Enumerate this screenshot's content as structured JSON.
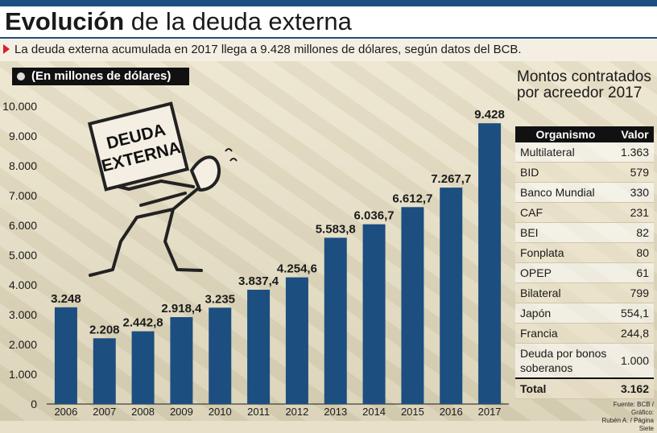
{
  "header": {
    "title_bold": "Evolución",
    "title_rest": "de la deuda externa"
  },
  "subtitle": "La deuda externa acumulada en 2017 llega a 9.428 millones de dólares, según datos del BCB.",
  "unit_label": "(En millones de dólares)",
  "illustration": {
    "sign_line1": "DEUDA",
    "sign_line2": "EXTERNA"
  },
  "colors": {
    "bar": "#1c4e80",
    "accent_red": "#d2232a",
    "table_header": "#111111"
  },
  "chart_data": {
    "type": "bar",
    "categories": [
      "2006",
      "2007",
      "2008",
      "2009",
      "2010",
      "2011",
      "2012",
      "2013",
      "2014",
      "2015",
      "2016",
      "2017"
    ],
    "values": [
      3248,
      2208,
      2442.8,
      2918.4,
      3235,
      3837.4,
      4254.6,
      5583.8,
      6036.7,
      6612.7,
      7267.7,
      9428
    ],
    "value_labels": [
      "3.248",
      "2.208",
      "2.442,8",
      "2.918,4",
      "3.235",
      "3.837,4",
      "4.254,6",
      "5.583,8",
      "6.036,7",
      "6.612,7",
      "7.267,7",
      "9.428"
    ],
    "yticks": [
      "0",
      "1.000",
      "2.000",
      "3.000",
      "4.000",
      "5.000",
      "6.000",
      "7.000",
      "8.000",
      "9.000",
      "10.000"
    ],
    "ylim": [
      0,
      10000
    ],
    "grid": false
  },
  "side_panel": {
    "title": "Montos contratados por acreedor 2017",
    "headers": [
      "Organismo",
      "Valor"
    ],
    "rows": [
      {
        "name": "Multilateral",
        "value": "1.363"
      },
      {
        "name": "BID",
        "value": "579"
      },
      {
        "name": "Banco Mundial",
        "value": "330"
      },
      {
        "name": "CAF",
        "value": "231"
      },
      {
        "name": "BEI",
        "value": "82"
      },
      {
        "name": "Fonplata",
        "value": "80"
      },
      {
        "name": "OPEP",
        "value": "61"
      },
      {
        "name": "Bilateral",
        "value": "799"
      },
      {
        "name": "Japón",
        "value": "554,1"
      },
      {
        "name": "Francia",
        "value": "244,8"
      },
      {
        "name": "Deuda por bonos soberanos",
        "value": "1.000"
      }
    ],
    "total": {
      "name": "Total",
      "value": "3.162"
    }
  },
  "credit": {
    "line1": "Fuente: BCB / Gráfico:",
    "line2": "Rubén A. / Página Siete"
  }
}
